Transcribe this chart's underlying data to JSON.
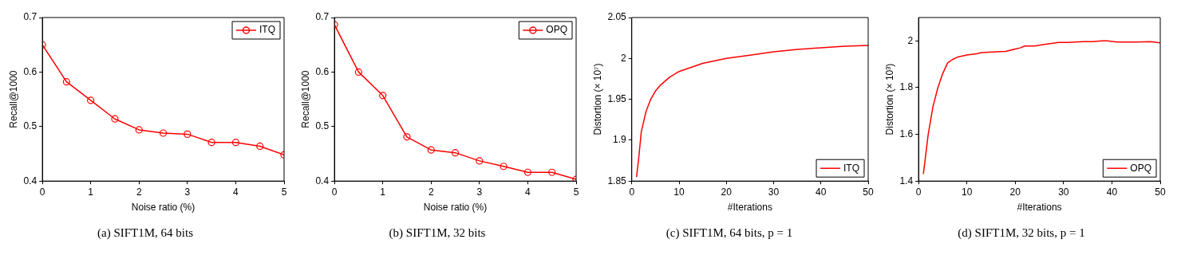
{
  "chart_data": [
    {
      "type": "line",
      "title": "(a) SIFT1M, 64 bits",
      "xlabel": "Noise ratio (%)",
      "ylabel": "Recall@1000",
      "x": [
        0,
        0.5,
        1,
        1.5,
        2,
        2.5,
        3,
        3.5,
        4,
        4.5,
        5
      ],
      "xlim": [
        0,
        5
      ],
      "xticks": [
        0,
        1,
        2,
        3,
        4,
        5
      ],
      "ylim": [
        0.4,
        0.7
      ],
      "yticks": [
        0.4,
        0.5,
        0.6,
        0.7
      ],
      "grid": false,
      "legend": "top right",
      "marker": "circle",
      "series": [
        {
          "name": "ITQ",
          "color": "#ff0000",
          "values": [
            0.65,
            0.582,
            0.548,
            0.514,
            0.494,
            0.488,
            0.486,
            0.471,
            0.471,
            0.464,
            0.448
          ]
        }
      ]
    },
    {
      "type": "line",
      "title": "(b) SIFT1M, 32 bits",
      "xlabel": "Noise ratio (%)",
      "ylabel": "Recall@1000",
      "x": [
        0,
        0.5,
        1,
        1.5,
        2,
        2.5,
        3,
        3.5,
        4,
        4.5,
        5
      ],
      "xlim": [
        0,
        5
      ],
      "xticks": [
        0,
        1,
        2,
        3,
        4,
        5
      ],
      "ylim": [
        0.4,
        0.7
      ],
      "yticks": [
        0.4,
        0.5,
        0.6,
        0.7
      ],
      "grid": false,
      "legend": "top right",
      "marker": "circle",
      "series": [
        {
          "name": "OPQ",
          "color": "#ff0000",
          "values": [
            0.687,
            0.6,
            0.557,
            0.481,
            0.457,
            0.452,
            0.437,
            0.427,
            0.416,
            0.416,
            0.403
          ]
        }
      ]
    },
    {
      "type": "line",
      "title": "(c) SIFT1M, 64 bits, p = 1",
      "xlabel": "#Iterations",
      "ylabel": "Distortion (× 10⁷)",
      "x": [
        1,
        1.5,
        2,
        3,
        4,
        5,
        6,
        8,
        10,
        15,
        20,
        25,
        30,
        35,
        40,
        45,
        50
      ],
      "xlim": [
        0,
        50
      ],
      "xticks": [
        0,
        10,
        20,
        30,
        40,
        50
      ],
      "ylim": [
        1.85,
        2.05
      ],
      "yticks": [
        1.85,
        1.9,
        1.95,
        2,
        2.05
      ],
      "grid": false,
      "legend": "bottom right",
      "marker": "none",
      "series": [
        {
          "name": "ITQ",
          "color": "#ff0000",
          "values": [
            1.855,
            1.88,
            1.91,
            1.935,
            1.95,
            1.96,
            1.967,
            1.977,
            1.984,
            1.994,
            2.0,
            2.004,
            2.008,
            2.011,
            2.013,
            2.015,
            2.016
          ]
        }
      ]
    },
    {
      "type": "line",
      "title": "(d) SIFT1M, 32 bits, p = 1",
      "xlabel": "#Iterations",
      "ylabel": "Distortion (× 10³)",
      "x": [
        1,
        2,
        3,
        4,
        5,
        6,
        7,
        8,
        10,
        12,
        13,
        16,
        18,
        20,
        21,
        22,
        24,
        26,
        29,
        31,
        34,
        36,
        38,
        39,
        41,
        45,
        48,
        50
      ],
      "xlim": [
        0,
        50
      ],
      "xticks": [
        0,
        10,
        20,
        30,
        40,
        50
      ],
      "ylim": [
        1.4,
        2.1
      ],
      "yticks": [
        1.4,
        1.6,
        1.8,
        2
      ],
      "grid": false,
      "legend": "bottom right",
      "marker": "none",
      "series": [
        {
          "name": "OPQ",
          "color": "#ff0000",
          "values": [
            1.43,
            1.6,
            1.72,
            1.8,
            1.86,
            1.905,
            1.92,
            1.93,
            1.94,
            1.945,
            1.95,
            1.953,
            1.955,
            1.965,
            1.97,
            1.978,
            1.978,
            1.985,
            1.993,
            1.993,
            1.997,
            1.997,
            2.0,
            2.0,
            1.995,
            1.995,
            1.997,
            1.992
          ]
        }
      ]
    }
  ]
}
